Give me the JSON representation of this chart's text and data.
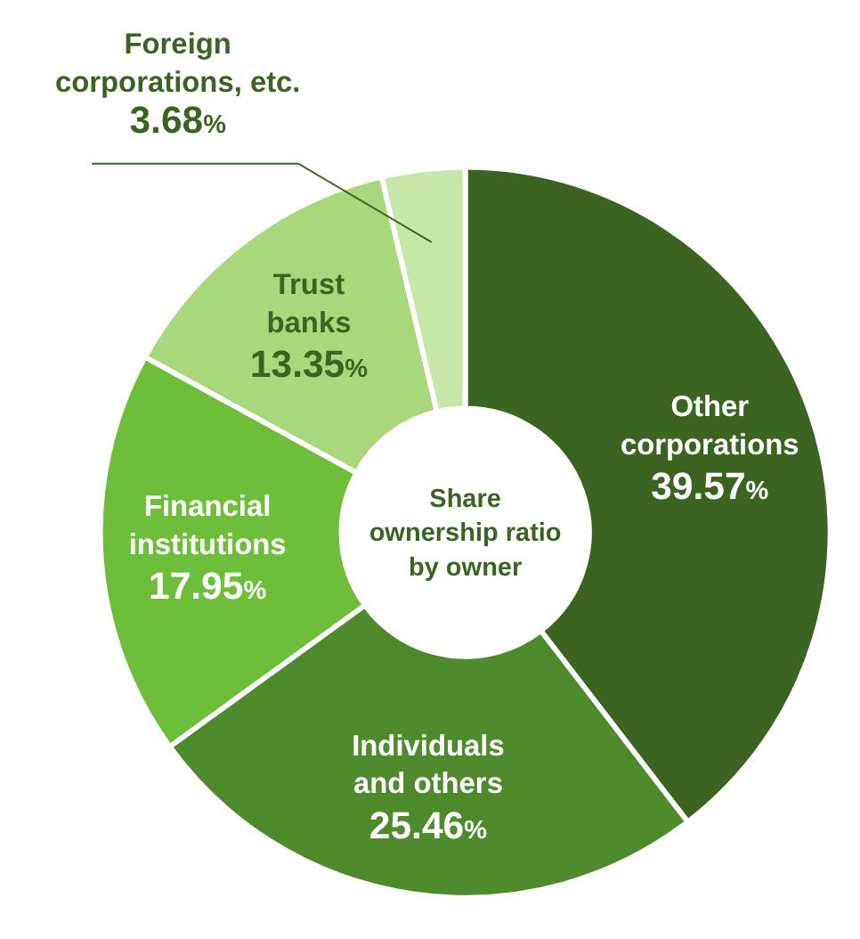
{
  "chart_data": {
    "type": "donut",
    "title": "Share ownership ratio by owner",
    "categories": [
      "Other corporations",
      "Individuals and others",
      "Financial institutions",
      "Trust banks",
      "Foreign corporations, etc."
    ],
    "values": [
      39.57,
      25.46,
      17.95,
      13.35,
      3.68
    ],
    "colors": [
      "#3b6321",
      "#4f8b2c",
      "#6fbe3b",
      "#a8d77c",
      "#c7e6a9"
    ],
    "value_labels": [
      "39.57%",
      "25.46%",
      "17.95%",
      "13.35%",
      "3.68%"
    ]
  }
}
